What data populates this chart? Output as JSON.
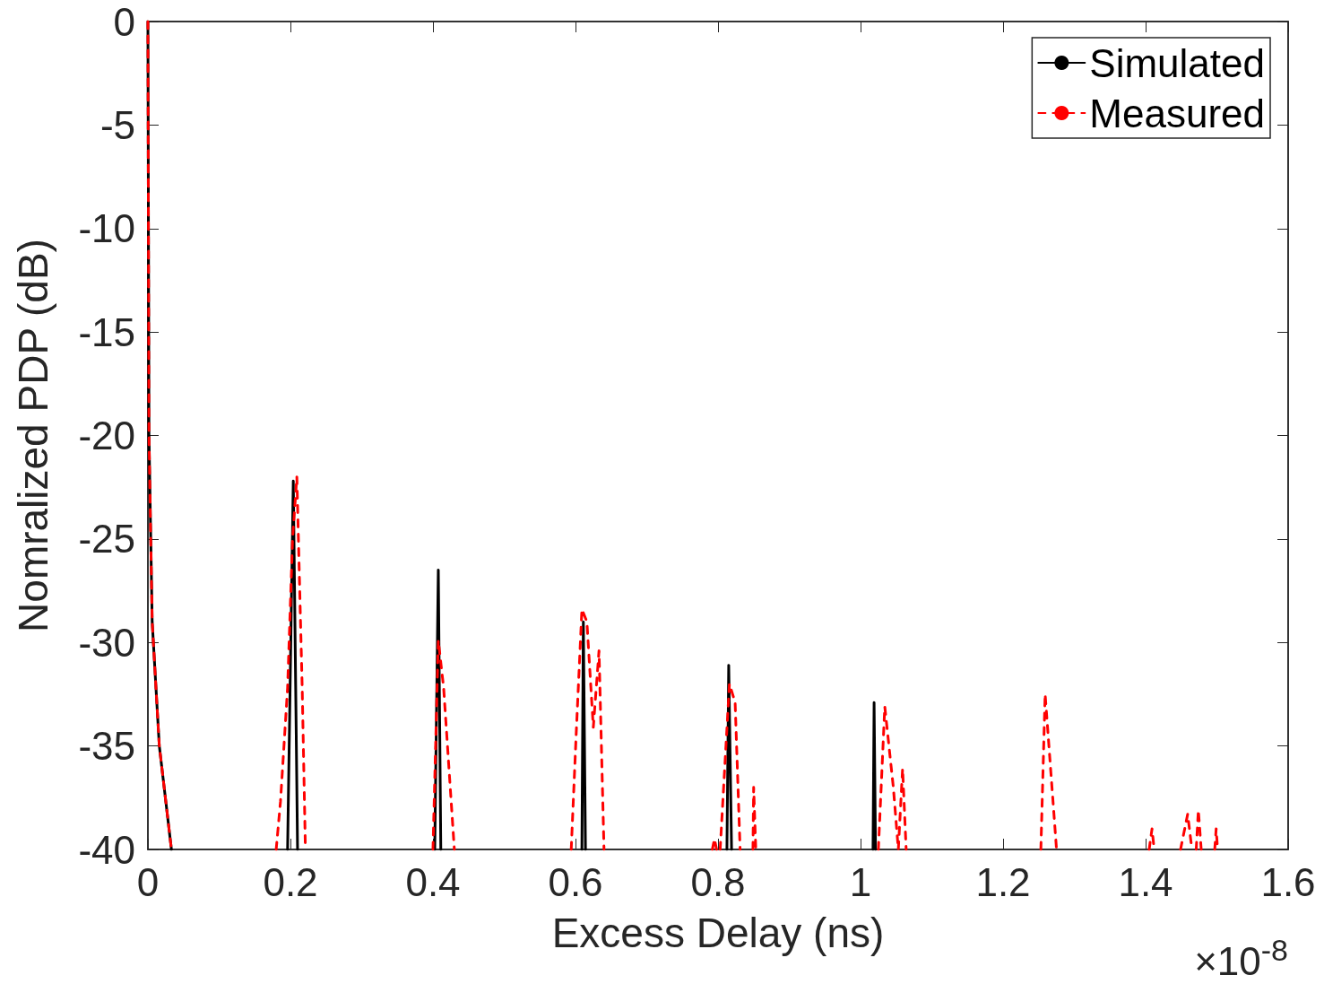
{
  "chart_data": {
    "type": "line",
    "xlabel": "Excess Delay (ns)",
    "ylabel": "Nomralized PDP (dB)",
    "xlim": [
      0,
      1.6
    ],
    "xticks": [
      0,
      0.2,
      0.4,
      0.6,
      0.8,
      1,
      1.2,
      1.4,
      1.6
    ],
    "ylim": [
      -40,
      0
    ],
    "yticks": [
      -40,
      -35,
      -30,
      -25,
      -20,
      -15,
      -10,
      -5,
      0
    ],
    "grid": false,
    "legend": "top right",
    "marker": "none",
    "annotations": [
      "×10$^{-8}$"
    ],
    "series": [
      {
        "name": "Simulated",
        "color": "#000000",
        "line_style": "solid",
        "x": [
          0,
          0.0015,
          0.004,
          0.006,
          0.016,
          0.033,
          0.1,
          0.196,
          0.204,
          0.21,
          0.3,
          0.4025,
          0.4075,
          0.411,
          0.5,
          0.609,
          0.611,
          0.614,
          0.7,
          0.8125,
          0.815,
          0.819,
          0.9,
          1.0175,
          1.019,
          1.021
        ],
        "values": [
          0,
          -20,
          -25,
          -29,
          -35,
          -40,
          null,
          -40,
          -22.2,
          -40,
          null,
          -40,
          -26.5,
          -40,
          null,
          -40,
          -29,
          -40,
          null,
          -40,
          -31.1,
          -40,
          null,
          -40,
          -32.9,
          -40
        ]
      },
      {
        "name": "Measured",
        "color": "#ff0000",
        "line_style": "dashed",
        "x": [
          0,
          0.0015,
          0.004,
          0.006,
          0.016,
          0.033,
          0.1,
          0.18,
          0.186,
          0.196,
          0.203,
          0.209,
          0.2165,
          0.221,
          0.3,
          0.4,
          0.4075,
          0.415,
          0.43,
          0.5,
          0.594,
          0.601,
          0.609,
          0.616,
          0.625,
          0.633,
          0.64,
          0.7,
          0.792,
          0.795,
          0.798,
          0.8,
          0.803,
          0.816,
          0.824,
          0.831,
          0.84,
          0.849,
          0.85,
          0.853,
          0.9,
          1.025,
          1.034,
          1.046,
          1.053,
          1.059,
          1.064,
          1.1,
          1.253,
          1.259,
          1.275,
          1.3,
          1.405,
          1.409,
          1.412,
          1.43,
          1.449,
          1.459,
          1.465,
          1.468,
          1.471,
          1.474,
          1.478,
          1.49,
          1.497,
          1.499,
          1.501
        ],
        "values": [
          0,
          -20,
          -25,
          -29,
          -35,
          -40,
          null,
          -40,
          -37.7,
          -32.2,
          -25,
          -22,
          -32.2,
          -40,
          null,
          -40,
          -29.9,
          -32.2,
          -40,
          null,
          -40,
          -34.4,
          -28.4,
          -29,
          -34.1,
          -30.4,
          -40,
          null,
          -40,
          -39.5,
          -40,
          null,
          -40,
          -32,
          -32.9,
          -40,
          null,
          -40,
          -37,
          -40,
          null,
          -40,
          -33.1,
          -37,
          -40,
          -36.1,
          -40,
          null,
          -40,
          -32.5,
          -40,
          null,
          -40,
          -39,
          -40,
          null,
          -40,
          -38.3,
          -40,
          null,
          -40,
          -38.1,
          -40,
          null,
          -40,
          -39,
          -40
        ]
      }
    ]
  }
}
